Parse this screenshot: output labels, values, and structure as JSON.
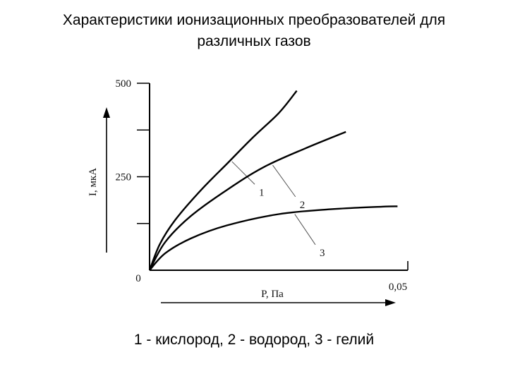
{
  "page": {
    "title_line1": "Характеристики ионизационных преобразователей для",
    "title_line2": "различных газов",
    "caption": "1 - кислород, 2 - водород, 3 - гелий"
  },
  "colors": {
    "line": "#000000",
    "text": "#111111"
  },
  "chart_data": {
    "type": "line",
    "title": "Характеристики ионизационных преобразователей для различных газов",
    "xlabel": "P, Па",
    "ylabel": "I, мкА",
    "xlim": [
      0,
      0.05
    ],
    "ylim": [
      0,
      500
    ],
    "x_ticks": [
      "0,05"
    ],
    "y_ticks": [
      "500",
      "250"
    ],
    "origin_label": "0",
    "series": [
      {
        "name": "1",
        "x": [
          0,
          0.002,
          0.005,
          0.01,
          0.015,
          0.02,
          0.025,
          0.0285
        ],
        "values": [
          0,
          70,
          135,
          215,
          285,
          355,
          420,
          480
        ]
      },
      {
        "name": "2",
        "x": [
          0,
          0.003,
          0.008,
          0.015,
          0.022,
          0.03,
          0.038
        ],
        "values": [
          0,
          75,
          145,
          215,
          275,
          325,
          370
        ]
      },
      {
        "name": "3",
        "x": [
          0,
          0.003,
          0.008,
          0.015,
          0.025,
          0.035,
          0.045,
          0.048
        ],
        "values": [
          0,
          45,
          85,
          120,
          150,
          163,
          170,
          171
        ]
      }
    ]
  }
}
